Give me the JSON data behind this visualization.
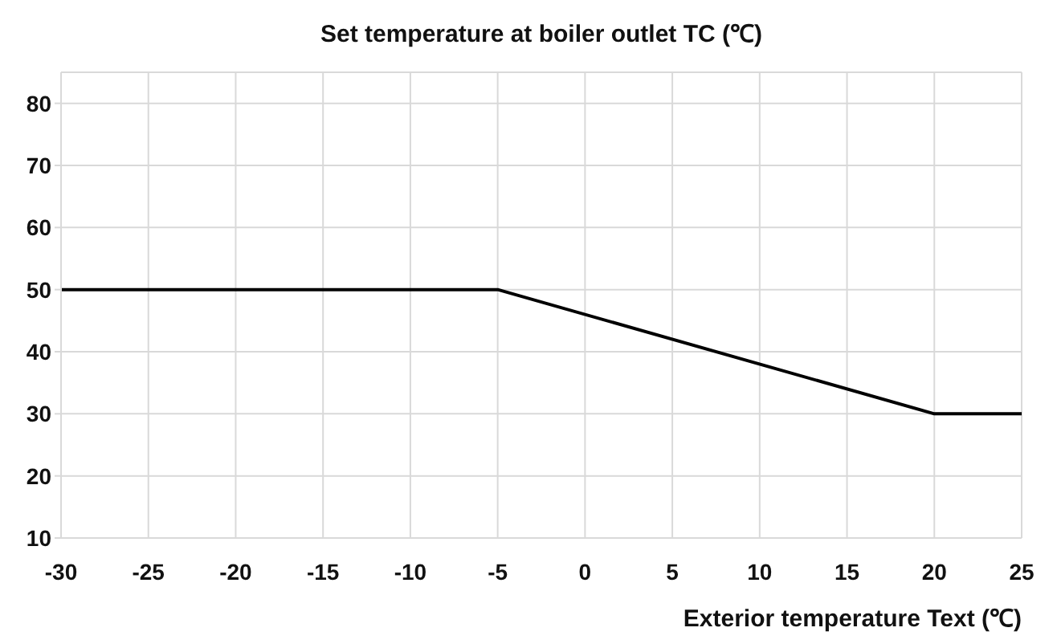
{
  "chart_data": {
    "type": "line",
    "title": "Set temperature at boiler outlet  TC (℃)",
    "xlabel": "Exterior temperature Text (℃)",
    "x": [
      -30,
      -5,
      20,
      25
    ],
    "series": [
      {
        "color": "#000000",
        "values": [
          50,
          50,
          30,
          30
        ]
      }
    ],
    "xlim": [
      -30,
      25
    ],
    "xticks": [
      -30,
      -25,
      -20,
      -15,
      -10,
      -5,
      0,
      5,
      10,
      15,
      20,
      25
    ],
    "ylim": [
      10,
      85
    ],
    "yticks": [
      10,
      20,
      30,
      40,
      50,
      60,
      70,
      80
    ],
    "grid": true,
    "legend": false,
    "marker": "none",
    "line_style": "solid"
  }
}
